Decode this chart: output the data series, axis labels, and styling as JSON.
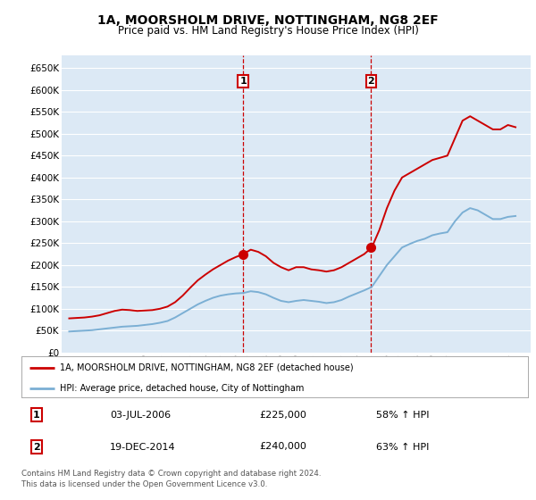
{
  "title": "1A, MOORSHOLM DRIVE, NOTTINGHAM, NG8 2EF",
  "subtitle": "Price paid vs. HM Land Registry's House Price Index (HPI)",
  "legend_line1": "1A, MOORSHOLM DRIVE, NOTTINGHAM, NG8 2EF (detached house)",
  "legend_line2": "HPI: Average price, detached house, City of Nottingham",
  "transaction1_date": "03-JUL-2006",
  "transaction1_price": "£225,000",
  "transaction1_hpi": "58% ↑ HPI",
  "transaction1_year": 2006.5,
  "transaction1_value": 225000,
  "transaction2_date": "19-DEC-2014",
  "transaction2_price": "£240,000",
  "transaction2_hpi": "63% ↑ HPI",
  "transaction2_year": 2014.96,
  "transaction2_value": 240000,
  "red_color": "#cc0000",
  "blue_color": "#7bafd4",
  "background_color": "#dce9f5",
  "grid_color": "#ffffff",
  "vline_color": "#cc0000",
  "footer": "Contains HM Land Registry data © Crown copyright and database right 2024.\nThis data is licensed under the Open Government Licence v3.0.",
  "ylim": [
    0,
    680000
  ],
  "yticks": [
    0,
    50000,
    100000,
    150000,
    200000,
    250000,
    300000,
    350000,
    400000,
    450000,
    500000,
    550000,
    600000,
    650000
  ],
  "xlim_left": 1994.5,
  "xlim_right": 2025.5,
  "years_red": [
    1995,
    1995.5,
    1996,
    1996.5,
    1997,
    1997.5,
    1998,
    1998.5,
    1999,
    1999.5,
    2000,
    2000.5,
    2001,
    2001.5,
    2002,
    2002.5,
    2003,
    2003.5,
    2004,
    2004.5,
    2005,
    2005.5,
    2006,
    2006.5,
    2007,
    2007.5,
    2008,
    2008.5,
    2009,
    2009.5,
    2010,
    2010.5,
    2011,
    2011.5,
    2012,
    2012.5,
    2013,
    2013.5,
    2014,
    2014.5,
    2015,
    2015.5,
    2016,
    2016.5,
    2017,
    2017.5,
    2018,
    2018.5,
    2019,
    2019.5,
    2020,
    2020.5,
    2021,
    2021.5,
    2022,
    2022.5,
    2023,
    2023.5,
    2024,
    2024.5
  ],
  "values_red": [
    78000,
    79000,
    80000,
    82000,
    85000,
    90000,
    95000,
    98000,
    97000,
    95000,
    96000,
    97000,
    100000,
    105000,
    115000,
    130000,
    148000,
    165000,
    178000,
    190000,
    200000,
    210000,
    218000,
    225000,
    235000,
    230000,
    220000,
    205000,
    195000,
    188000,
    195000,
    195000,
    190000,
    188000,
    185000,
    188000,
    195000,
    205000,
    215000,
    225000,
    240000,
    280000,
    330000,
    370000,
    400000,
    410000,
    420000,
    430000,
    440000,
    445000,
    450000,
    490000,
    530000,
    540000,
    530000,
    520000,
    510000,
    510000,
    520000,
    515000
  ],
  "years_blue": [
    1995,
    1995.5,
    1996,
    1996.5,
    1997,
    1997.5,
    1998,
    1998.5,
    1999,
    1999.5,
    2000,
    2000.5,
    2001,
    2001.5,
    2002,
    2002.5,
    2003,
    2003.5,
    2004,
    2004.5,
    2005,
    2005.5,
    2006,
    2006.5,
    2007,
    2007.5,
    2008,
    2008.5,
    2009,
    2009.5,
    2010,
    2010.5,
    2011,
    2011.5,
    2012,
    2012.5,
    2013,
    2013.5,
    2014,
    2014.5,
    2015,
    2015.5,
    2016,
    2016.5,
    2017,
    2017.5,
    2018,
    2018.5,
    2019,
    2019.5,
    2020,
    2020.5,
    2021,
    2021.5,
    2022,
    2022.5,
    2023,
    2023.5,
    2024,
    2024.5
  ],
  "values_blue": [
    48000,
    49000,
    50000,
    51000,
    53000,
    55000,
    57000,
    59000,
    60000,
    61000,
    63000,
    65000,
    68000,
    72000,
    80000,
    90000,
    100000,
    110000,
    118000,
    125000,
    130000,
    133000,
    135000,
    136000,
    140000,
    138000,
    133000,
    125000,
    118000,
    115000,
    118000,
    120000,
    118000,
    116000,
    113000,
    115000,
    120000,
    128000,
    135000,
    142000,
    150000,
    175000,
    200000,
    220000,
    240000,
    248000,
    255000,
    260000,
    268000,
    272000,
    275000,
    300000,
    320000,
    330000,
    325000,
    315000,
    305000,
    305000,
    310000,
    312000
  ]
}
